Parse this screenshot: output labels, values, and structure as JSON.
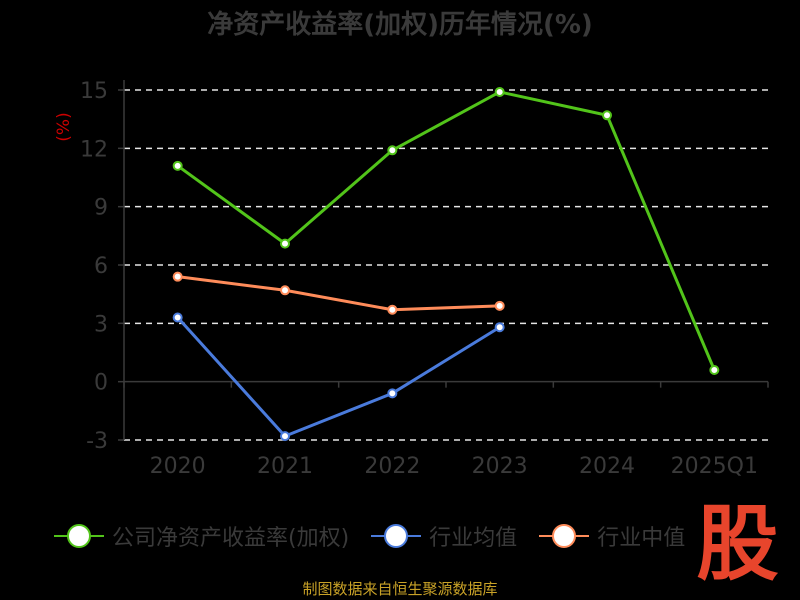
{
  "title": "净资产收益率(加权)历年情况(%)",
  "source": "制图数据来自恒生聚源数据库",
  "logo_text": "股",
  "chart_data": {
    "type": "line",
    "title": "净资产收益率(加权)历年情况(%)",
    "ylabel": "(%)",
    "xlabel": "",
    "categories": [
      "2020",
      "2021",
      "2022",
      "2023",
      "2024",
      "2025Q1"
    ],
    "yticks": [
      -3,
      0,
      3,
      6,
      9,
      12,
      15
    ],
    "ylim": [
      -3,
      15
    ],
    "grid": true,
    "legend_position": "bottom",
    "series": [
      {
        "name": "公司净资产收益率(加权)",
        "color": "#52c41a",
        "values": [
          11.1,
          7.1,
          11.9,
          14.9,
          13.7,
          0.6
        ]
      },
      {
        "name": "行业均值",
        "color": "#4a7bdc",
        "values": [
          3.3,
          -2.8,
          -0.6,
          2.8,
          null,
          null
        ]
      },
      {
        "name": "行业中值",
        "color": "#ff8c5a",
        "values": [
          5.4,
          4.7,
          3.7,
          3.9,
          null,
          null
        ]
      }
    ]
  }
}
